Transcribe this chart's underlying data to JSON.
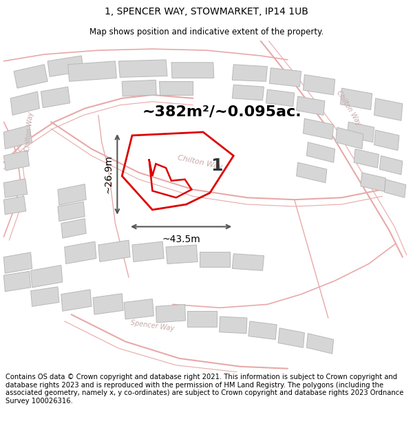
{
  "title_line1": "1, SPENCER WAY, STOWMARKET, IP14 1UB",
  "title_line2": "Map shows position and indicative extent of the property.",
  "area_text": "~382m²/~0.095ac.",
  "width_label": "~43.5m",
  "height_label": "~26.9m",
  "plot_number": "1",
  "footer_text": "Contains OS data © Crown copyright and database right 2021. This information is subject to Crown copyright and database rights 2023 and is reproduced with the permission of HM Land Registry. The polygons (including the associated geometry, namely x, y co-ordinates) are subject to Crown copyright and database rights 2023 Ordnance Survey 100026316.",
  "map_bg": "#f2f2f2",
  "road_color": "#e8a8a8",
  "road_fill": "#f0d0d0",
  "building_face": "#d6d6d6",
  "building_edge": "#b8b8b8",
  "property_red": "#dd0000",
  "dim_color": "#555555",
  "road_label_color": "#c8a8a8",
  "title_fs": 10,
  "subtitle_fs": 8.5,
  "area_fs": 16,
  "annot_fs": 10,
  "footer_fs": 7.2,
  "plot_label_fs": 18
}
